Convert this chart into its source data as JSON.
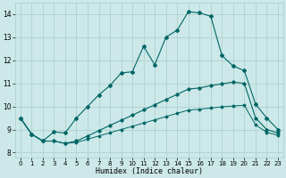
{
  "xlabel": "Humidex (Indice chaleur)",
  "bg_color": "#cce8e8",
  "grid_color": "#aacccc",
  "line_color": "#006666",
  "xlim": [
    -0.5,
    23.5
  ],
  "ylim": [
    7.8,
    14.5
  ],
  "xticks": [
    0,
    1,
    2,
    3,
    4,
    5,
    6,
    7,
    8,
    9,
    10,
    11,
    12,
    13,
    14,
    15,
    16,
    17,
    18,
    19,
    20,
    21,
    22,
    23
  ],
  "yticks": [
    8,
    9,
    10,
    11,
    12,
    13,
    14
  ],
  "main_x": [
    0,
    1,
    2,
    3,
    4,
    5,
    6,
    7,
    8,
    9,
    10,
    11,
    12,
    13,
    14,
    15,
    16,
    17,
    18,
    19,
    20,
    21,
    22,
    23
  ],
  "main_y": [
    9.5,
    8.8,
    8.5,
    8.9,
    8.85,
    9.5,
    10.0,
    10.5,
    10.9,
    11.45,
    11.5,
    12.6,
    11.8,
    13.0,
    13.3,
    14.1,
    14.05,
    13.9,
    12.2,
    11.75,
    11.55,
    10.1,
    9.5,
    9.0
  ],
  "mid_x": [
    0,
    1,
    2,
    3,
    4,
    5,
    6,
    7,
    8,
    9,
    10,
    11,
    12,
    13,
    14,
    15,
    16,
    17,
    18,
    19,
    20,
    21,
    22,
    23
  ],
  "mid_y": [
    9.5,
    8.8,
    8.5,
    8.5,
    8.4,
    8.5,
    8.72,
    8.95,
    9.18,
    9.4,
    9.62,
    9.85,
    10.07,
    10.3,
    10.52,
    10.75,
    10.8,
    10.9,
    10.98,
    11.05,
    11.0,
    9.5,
    9.0,
    8.85
  ],
  "low_x": [
    0,
    1,
    2,
    3,
    4,
    5,
    6,
    7,
    8,
    9,
    10,
    11,
    12,
    13,
    14,
    15,
    16,
    17,
    18,
    19,
    20,
    21,
    22,
    23
  ],
  "low_y": [
    9.5,
    8.8,
    8.5,
    8.5,
    8.4,
    8.44,
    8.58,
    8.72,
    8.86,
    9.0,
    9.14,
    9.28,
    9.42,
    9.56,
    9.7,
    9.84,
    9.88,
    9.93,
    9.98,
    10.02,
    10.05,
    9.2,
    8.88,
    8.75
  ]
}
